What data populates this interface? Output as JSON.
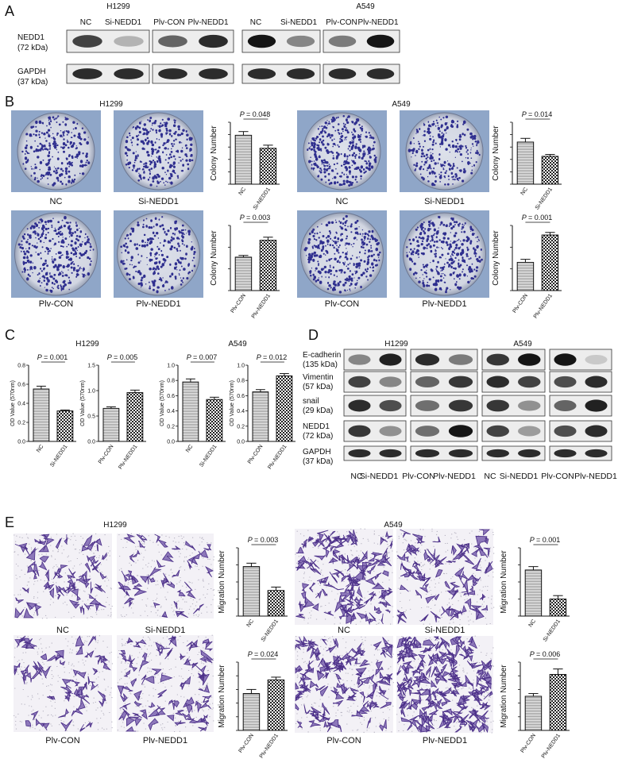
{
  "panels": {
    "A": "A",
    "B": "B",
    "C": "C",
    "D": "D",
    "E": "E"
  },
  "panelA": {
    "cell_lines": [
      "H1299",
      "A549"
    ],
    "lanes": [
      [
        "NC",
        "Si-NEDD1"
      ],
      [
        "Plv-CON",
        "Plv-NEDD1"
      ],
      [
        "NC",
        "Si-NEDD1"
      ],
      [
        "Plv-CON",
        "Plv-NEDD1"
      ]
    ],
    "rows": [
      [
        "NEDD1",
        "(72 kDa)"
      ],
      [
        "GAPDH",
        "(37 kDa)"
      ]
    ],
    "band_intensity": {
      "NEDD1": [
        [
          0.75,
          0.25
        ],
        [
          0.6,
          0.85
        ],
        [
          0.95,
          0.45
        ],
        [
          0.5,
          0.95
        ]
      ],
      "GAPDH": [
        [
          0.85,
          0.85
        ],
        [
          0.85,
          0.85
        ],
        [
          0.85,
          0.85
        ],
        [
          0.85,
          0.85
        ]
      ]
    }
  },
  "panelB": {
    "cell_lines": [
      "H1299",
      "A549"
    ],
    "dish_labels": [
      [
        "NC",
        "Si-NEDD1"
      ],
      [
        "Plv-CON",
        "Plv-NEDD1"
      ],
      [
        "NC",
        "Si-NEDD1"
      ],
      [
        "Plv-CON",
        "Plv-NEDD1"
      ]
    ],
    "y_label": "Colony Number"
  },
  "panelC": {
    "cell_lines": [
      "H1299",
      "A549"
    ],
    "y_label": "OD Value (570nm)"
  },
  "panelD": {
    "cell_lines": [
      "H1299",
      "A549"
    ],
    "rows": [
      [
        "E-cadherin",
        "(135 kDa)"
      ],
      [
        "Vimentin",
        "(57 kDa)"
      ],
      [
        "snail",
        "(29 kDa)"
      ],
      [
        "NEDD1",
        "(72 kDa)"
      ],
      [
        "GAPDH",
        "(37 kDa)"
      ]
    ],
    "lanes": [
      "NC",
      "Si-NEDD1",
      "Plv-CON",
      "Plv-NEDD1",
      "NC",
      "Si-NEDD1",
      "Plv-CON",
      "Plv-NEDD1"
    ],
    "band_intensity": {
      "E-cadherin": [
        [
          0.45,
          0.9
        ],
        [
          0.85,
          0.5
        ],
        [
          0.8,
          0.95
        ],
        [
          0.95,
          0.15
        ]
      ],
      "Vimentin": [
        [
          0.75,
          0.45
        ],
        [
          0.6,
          0.8
        ],
        [
          0.85,
          0.75
        ],
        [
          0.7,
          0.85
        ]
      ],
      "snail": [
        [
          0.85,
          0.7
        ],
        [
          0.55,
          0.8
        ],
        [
          0.8,
          0.4
        ],
        [
          0.6,
          0.9
        ]
      ],
      "NEDD1": [
        [
          0.8,
          0.4
        ],
        [
          0.55,
          0.95
        ],
        [
          0.75,
          0.35
        ],
        [
          0.7,
          0.85
        ]
      ],
      "GAPDH": [
        [
          0.85,
          0.85
        ],
        [
          0.85,
          0.85
        ],
        [
          0.85,
          0.85
        ],
        [
          0.85,
          0.85
        ]
      ]
    }
  },
  "panelE": {
    "cell_lines": [
      "H1299",
      "A549"
    ],
    "image_labels": [
      [
        "NC",
        "Si-NEDD1"
      ],
      [
        "Plv-CON",
        "Plv-NEDD1"
      ],
      [
        "NC",
        "Si-NEDD1"
      ],
      [
        "Plv-CON",
        "Plv-NEDD1"
      ]
    ],
    "y_label": "Migration Number"
  },
  "chart_data": [
    {
      "type": "bar",
      "panel": "B",
      "cell_line": "H1299",
      "categories": [
        "NC",
        "Si-NEDD1"
      ],
      "values": [
        79,
        58
      ],
      "errors": [
        6,
        5
      ],
      "ylabel": "Colony Number",
      "pvalue": "= 0.048",
      "ylim": [
        0,
        100
      ]
    },
    {
      "type": "bar",
      "panel": "B",
      "cell_line": "A549",
      "categories": [
        "NC",
        "Si-NEDD1"
      ],
      "values": [
        68,
        45
      ],
      "errors": [
        6,
        3
      ],
      "ylabel": "Colony Number",
      "pvalue": "= 0.014",
      "ylim": [
        0,
        100
      ]
    },
    {
      "type": "bar",
      "panel": "B",
      "cell_line": "H1299",
      "categories": [
        "Plv-CON",
        "Plv-NEDD1"
      ],
      "values": [
        77,
        116
      ],
      "errors": [
        4,
        7
      ],
      "ylabel": "Colony Number",
      "pvalue": "= 0.003",
      "ylim": [
        0,
        150
      ]
    },
    {
      "type": "bar",
      "panel": "B",
      "cell_line": "A549",
      "categories": [
        "Plv-CON",
        "Plv-NEDD1"
      ],
      "values": [
        65,
        128
      ],
      "errors": [
        7,
        6
      ],
      "ylabel": "Colony Number",
      "pvalue": "= 0.001",
      "ylim": [
        0,
        150
      ]
    },
    {
      "type": "bar",
      "panel": "C",
      "cell_line": "H1299",
      "categories": [
        "NC",
        "Si-NEDD1"
      ],
      "values": [
        0.55,
        0.32
      ],
      "errors": [
        0.03,
        0.01
      ],
      "ylabel": "OD Value (570nm)",
      "pvalue": "= 0.001",
      "ylim": [
        0,
        0.8
      ],
      "yticks": [
        "0.0",
        "0.2",
        "0.4",
        "0.6",
        "0.8"
      ]
    },
    {
      "type": "bar",
      "panel": "C",
      "cell_line": "H1299",
      "categories": [
        "Plv-CON",
        "Plv-NEDD1"
      ],
      "values": [
        0.65,
        0.96
      ],
      "errors": [
        0.03,
        0.05
      ],
      "ylabel": "OD Value (570nm)",
      "pvalue": "= 0.005",
      "ylim": [
        0,
        1.5
      ],
      "yticks": [
        "0.0",
        "0.5",
        "1.0",
        "1.5"
      ]
    },
    {
      "type": "bar",
      "panel": "C",
      "cell_line": "A549",
      "categories": [
        "NC",
        "Si-NEDD1"
      ],
      "values": [
        0.78,
        0.55
      ],
      "errors": [
        0.04,
        0.03
      ],
      "ylabel": "OD Value (570nm)",
      "pvalue": "= 0.007",
      "ylim": [
        0,
        1.0
      ],
      "yticks": [
        "0.0",
        "0.2",
        "0.4",
        "0.6",
        "0.8",
        "1.0"
      ]
    },
    {
      "type": "bar",
      "panel": "C",
      "cell_line": "A549",
      "categories": [
        "Plv-CON",
        "Plv-NEDD1"
      ],
      "values": [
        0.65,
        0.86
      ],
      "errors": [
        0.03,
        0.03
      ],
      "ylabel": "OD Value (570nm)",
      "pvalue": "= 0.012",
      "ylim": [
        0,
        1.0
      ],
      "yticks": [
        "0.0",
        "0.2",
        "0.4",
        "0.6",
        "0.8",
        "1.0"
      ]
    },
    {
      "type": "bar",
      "panel": "E",
      "cell_line": "H1299",
      "categories": [
        "NC",
        "Si-NEDD1"
      ],
      "values": [
        29,
        15
      ],
      "errors": [
        2,
        2
      ],
      "ylabel": "Migration Number",
      "pvalue": "= 0.003",
      "ylim": [
        0,
        40
      ]
    },
    {
      "type": "bar",
      "panel": "E",
      "cell_line": "A549",
      "categories": [
        "NC",
        "Si-NEDD1"
      ],
      "values": [
        27,
        10
      ],
      "errors": [
        2,
        2
      ],
      "ylabel": "Migration Number",
      "pvalue": "= 0.001",
      "ylim": [
        0,
        40
      ]
    },
    {
      "type": "bar",
      "panel": "E",
      "cell_line": "H1299",
      "categories": [
        "Plv-CON",
        "Plv-NEDD1"
      ],
      "values": [
        27,
        37
      ],
      "errors": [
        3,
        2
      ],
      "ylabel": "Migration Number",
      "pvalue": "= 0.024",
      "ylim": [
        0,
        50
      ]
    },
    {
      "type": "bar",
      "panel": "E",
      "cell_line": "A549",
      "categories": [
        "Plv-CON",
        "Plv-NEDD1"
      ],
      "values": [
        25,
        41
      ],
      "errors": [
        2,
        4
      ],
      "ylabel": "Migration Number",
      "pvalue": "= 0.006",
      "ylim": [
        0,
        50
      ]
    }
  ]
}
